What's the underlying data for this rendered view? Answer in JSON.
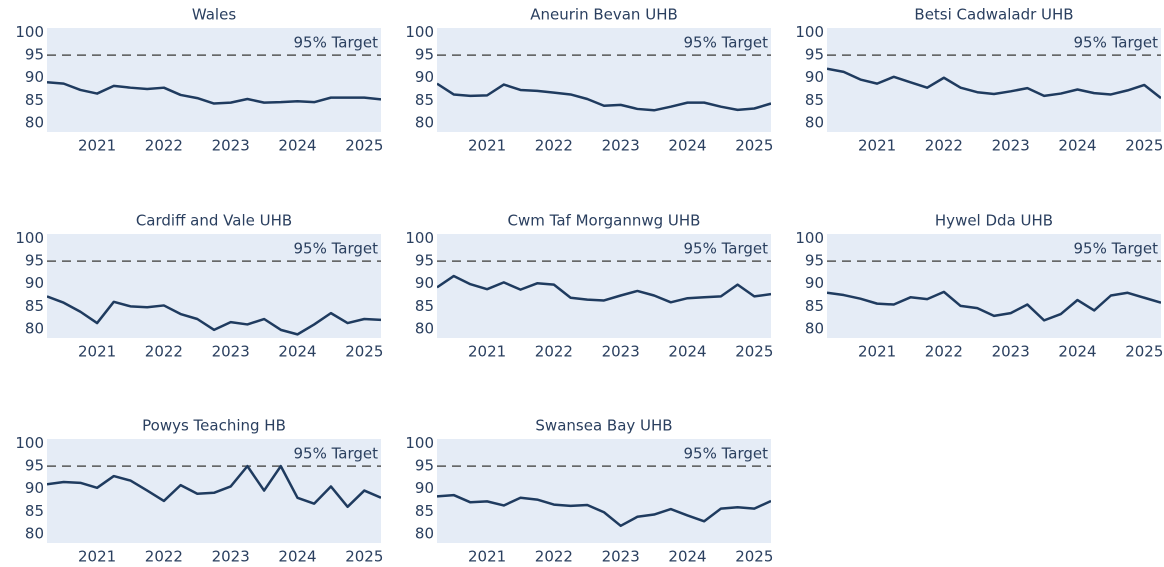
{
  "chart_data": [
    {
      "type": "line",
      "title": "Wales",
      "color": "#1f3b5f",
      "bg": "#e5ecf6",
      "x": [
        2020.25,
        2020.5,
        2020.75,
        2021,
        2021.25,
        2021.5,
        2021.75,
        2022,
        2022.25,
        2022.5,
        2022.75,
        2023,
        2023.25,
        2023.5,
        2023.75,
        2024,
        2024.25,
        2024.5,
        2024.75,
        2025,
        2025.25
      ],
      "values": [
        89,
        88.7,
        87.3,
        86.5,
        88.2,
        87.8,
        87.5,
        87.8,
        86.2,
        85.5,
        84.3,
        84.5,
        85.3,
        84.5,
        84.6,
        84.8,
        84.6,
        85.6,
        85.6,
        85.6,
        85.2
      ],
      "xlim": [
        2020.25,
        2025.25
      ],
      "xticks": [
        2021,
        2022,
        2023,
        2024,
        2025
      ],
      "ylim": [
        78,
        101
      ],
      "yticks": [
        80,
        85,
        90,
        95,
        100
      ],
      "target": 95,
      "target_label": "95% Target"
    },
    {
      "type": "line",
      "title": "Aneurin Bevan UHB",
      "color": "#1f3b5f",
      "bg": "#e5ecf6",
      "x": [
        2020.25,
        2020.5,
        2020.75,
        2021,
        2021.25,
        2021.5,
        2021.75,
        2022,
        2022.25,
        2022.5,
        2022.75,
        2023,
        2023.25,
        2023.5,
        2023.75,
        2024,
        2024.25,
        2024.5,
        2024.75,
        2025,
        2025.25
      ],
      "values": [
        88.7,
        86.3,
        86,
        86.1,
        88.5,
        87.3,
        87.1,
        86.7,
        86.3,
        85.3,
        83.8,
        84,
        83.1,
        82.8,
        83.6,
        84.5,
        84.5,
        83.6,
        82.9,
        83.2,
        84.3
      ],
      "xlim": [
        2020.25,
        2025.25
      ],
      "xticks": [
        2021,
        2022,
        2023,
        2024,
        2025
      ],
      "ylim": [
        78,
        101
      ],
      "yticks": [
        80,
        85,
        90,
        95,
        100
      ],
      "target": 95,
      "target_label": "95% Target"
    },
    {
      "type": "line",
      "title": "Betsi Cadwaladr UHB",
      "color": "#1f3b5f",
      "bg": "#e5ecf6",
      "x": [
        2020.25,
        2020.5,
        2020.75,
        2021,
        2021.25,
        2021.5,
        2021.75,
        2022,
        2022.25,
        2022.5,
        2022.75,
        2023,
        2023.25,
        2023.5,
        2023.75,
        2024,
        2024.25,
        2024.5,
        2024.75,
        2025,
        2025.25
      ],
      "values": [
        92,
        91.3,
        89.6,
        88.7,
        90.2,
        89,
        87.8,
        90,
        87.8,
        86.8,
        86.4,
        87,
        87.7,
        86,
        86.5,
        87.4,
        86.6,
        86.3,
        87.2,
        88.4,
        85.5
      ],
      "xlim": [
        2020.25,
        2025.25
      ],
      "xticks": [
        2021,
        2022,
        2023,
        2024,
        2025
      ],
      "ylim": [
        78,
        101
      ],
      "yticks": [
        80,
        85,
        90,
        95,
        100
      ],
      "target": 95,
      "target_label": "95% Target"
    },
    {
      "type": "line",
      "title": "Cardiff and Vale UHB",
      "color": "#1f3b5f",
      "bg": "#e5ecf6",
      "x": [
        2020.25,
        2020.5,
        2020.75,
        2021,
        2021.25,
        2021.5,
        2021.75,
        2022,
        2022.25,
        2022.5,
        2022.75,
        2023,
        2023.25,
        2023.5,
        2023.75,
        2024,
        2024.25,
        2024.5,
        2024.75,
        2025,
        2025.25
      ],
      "values": [
        87.2,
        85.8,
        83.8,
        81.3,
        86,
        85,
        84.8,
        85.2,
        83.3,
        82.2,
        79.8,
        81.5,
        81,
        82.2,
        79.8,
        78.8,
        81,
        83.5,
        81.3,
        82.2,
        82
      ],
      "xlim": [
        2020.25,
        2025.25
      ],
      "xticks": [
        2021,
        2022,
        2023,
        2024,
        2025
      ],
      "ylim": [
        78,
        101
      ],
      "yticks": [
        80,
        85,
        90,
        95,
        100
      ],
      "target": 95,
      "target_label": "95% Target"
    },
    {
      "type": "line",
      "title": "Cwm Taf Morgannwg UHB",
      "color": "#1f3b5f",
      "bg": "#e5ecf6",
      "x": [
        2020.25,
        2020.5,
        2020.75,
        2021,
        2021.25,
        2021.5,
        2021.75,
        2022,
        2022.25,
        2022.5,
        2022.75,
        2023,
        2023.25,
        2023.5,
        2023.75,
        2024,
        2024.25,
        2024.5,
        2024.75,
        2025,
        2025.25
      ],
      "values": [
        89.2,
        91.7,
        89.9,
        88.8,
        90.3,
        88.7,
        90.1,
        89.8,
        86.9,
        86.5,
        86.3,
        87.4,
        88.4,
        87.4,
        85.9,
        86.8,
        87,
        87.2,
        89.8,
        87.2,
        87.7
      ],
      "xlim": [
        2020.25,
        2025.25
      ],
      "xticks": [
        2021,
        2022,
        2023,
        2024,
        2025
      ],
      "ylim": [
        78,
        101
      ],
      "yticks": [
        80,
        85,
        90,
        95,
        100
      ],
      "target": 95,
      "target_label": "95% Target"
    },
    {
      "type": "line",
      "title": "Hywel Dda UHB",
      "color": "#1f3b5f",
      "bg": "#e5ecf6",
      "x": [
        2020.25,
        2020.5,
        2020.75,
        2021,
        2021.25,
        2021.5,
        2021.75,
        2022,
        2022.25,
        2022.5,
        2022.75,
        2023,
        2023.25,
        2023.5,
        2023.75,
        2024,
        2024.25,
        2024.5,
        2024.75,
        2025,
        2025.25
      ],
      "values": [
        88,
        87.5,
        86.7,
        85.6,
        85.4,
        87,
        86.6,
        88.2,
        85.1,
        84.6,
        82.9,
        83.5,
        85.4,
        81.9,
        83.3,
        86.4,
        84.1,
        87.4,
        88,
        86.9,
        85.8
      ],
      "xlim": [
        2020.25,
        2025.25
      ],
      "xticks": [
        2021,
        2022,
        2023,
        2024,
        2025
      ],
      "ylim": [
        78,
        101
      ],
      "yticks": [
        80,
        85,
        90,
        95,
        100
      ],
      "target": 95,
      "target_label": "95% Target"
    },
    {
      "type": "line",
      "title": "Powys Teaching HB",
      "color": "#1f3b5f",
      "bg": "#e5ecf6",
      "x": [
        2020.25,
        2020.5,
        2020.75,
        2021,
        2021.25,
        2021.5,
        2021.75,
        2022,
        2022.25,
        2022.5,
        2022.75,
        2023,
        2023.25,
        2023.5,
        2023.75,
        2024,
        2024.25,
        2024.5,
        2024.75,
        2025,
        2025.25
      ],
      "values": [
        91,
        91.5,
        91.3,
        90.2,
        92.8,
        91.8,
        89.6,
        87.3,
        90.8,
        88.9,
        89.1,
        90.5,
        95,
        89.6,
        95,
        88,
        86.7,
        90.5,
        86,
        89.6,
        88
      ],
      "xlim": [
        2020.25,
        2025.25
      ],
      "xticks": [
        2021,
        2022,
        2023,
        2024,
        2025
      ],
      "ylim": [
        78,
        101
      ],
      "yticks": [
        80,
        85,
        90,
        95,
        100
      ],
      "target": 95,
      "target_label": "95% Target"
    },
    {
      "type": "line",
      "title": "Swansea Bay UHB",
      "color": "#1f3b5f",
      "bg": "#e5ecf6",
      "x": [
        2020.25,
        2020.5,
        2020.75,
        2021,
        2021.25,
        2021.5,
        2021.75,
        2022,
        2022.25,
        2022.5,
        2022.75,
        2023,
        2023.25,
        2023.5,
        2023.75,
        2024,
        2024.25,
        2024.5,
        2024.75,
        2025,
        2025.25
      ],
      "values": [
        88.3,
        88.6,
        87,
        87.2,
        86.3,
        88,
        87.6,
        86.5,
        86.2,
        86.4,
        84.8,
        81.8,
        83.8,
        84.3,
        85.5,
        84.1,
        82.8,
        85.6,
        85.9,
        85.6,
        87.3
      ],
      "xlim": [
        2020.25,
        2025.25
      ],
      "xticks": [
        2021,
        2022,
        2023,
        2024,
        2025
      ],
      "ylim": [
        78,
        101
      ],
      "yticks": [
        80,
        85,
        90,
        95,
        100
      ],
      "target": 95,
      "target_label": "95% Target"
    }
  ]
}
